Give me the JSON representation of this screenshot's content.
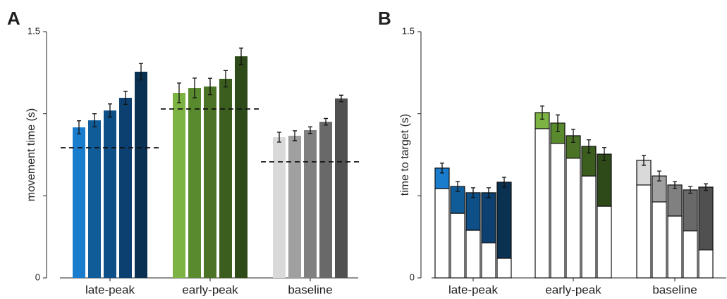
{
  "chart_data": [
    {
      "type": "bar",
      "panel": "A",
      "ylabel": "movement time (s)",
      "ylim": [
        0,
        1.5
      ],
      "yticks": [
        0,
        1.5
      ],
      "yminor_ticks": [
        0.5,
        1
      ],
      "categories": [
        "late-peak",
        "early-peak",
        "baseline"
      ],
      "colors": [
        [
          "#1a7ccc",
          "#0f5c99",
          "#0d4f86",
          "#0b4070",
          "#0a3152"
        ],
        [
          "#7cb342",
          "#5a8a2e",
          "#4a7326",
          "#3b5e1f",
          "#2d4a18"
        ],
        [
          "#d9d9d9",
          "#a0a0a0",
          "#808080",
          "#696969",
          "#505050"
        ]
      ],
      "values": [
        [
          0.917,
          0.96,
          1.02,
          1.097,
          1.256
        ],
        [
          1.127,
          1.157,
          1.166,
          1.213,
          1.35
        ],
        [
          0.857,
          0.866,
          0.9,
          0.951,
          1.093
        ]
      ],
      "errors": [
        [
          0.04,
          0.04,
          0.04,
          0.04,
          0.05
        ],
        [
          0.06,
          0.06,
          0.05,
          0.05,
          0.05
        ],
        [
          0.03,
          0.03,
          0.02,
          0.02,
          0.02
        ]
      ],
      "reference_lines": [
        0.793,
        1.029,
        0.707
      ]
    },
    {
      "type": "stacked_bar",
      "panel": "B",
      "ylabel": "time to target (s)",
      "ylim": [
        0,
        1.5
      ],
      "yticks": [
        0,
        1.5
      ],
      "yminor_ticks": [
        0.5,
        1
      ],
      "categories": [
        "late-peak",
        "early-peak",
        "baseline"
      ],
      "bottom_color": "#ffffff",
      "colors": [
        [
          "#1a7ccc",
          "#0f5c99",
          "#0d4f86",
          "#0b4070",
          "#0a3152"
        ],
        [
          "#7cb342",
          "#5a8a2e",
          "#4a7326",
          "#3b5e1f",
          "#2d4a18"
        ],
        [
          "#d9d9d9",
          "#a0a0a0",
          "#808080",
          "#696969",
          "#505050"
        ]
      ],
      "bottom_values": [
        [
          0.544,
          0.394,
          0.291,
          0.214,
          0.12
        ],
        [
          0.909,
          0.819,
          0.729,
          0.621,
          0.437
        ],
        [
          0.566,
          0.463,
          0.377,
          0.287,
          0.171
        ]
      ],
      "top_values": [
        [
          0.125,
          0.163,
          0.228,
          0.305,
          0.463
        ],
        [
          0.098,
          0.124,
          0.137,
          0.18,
          0.317
        ],
        [
          0.15,
          0.158,
          0.189,
          0.249,
          0.382
        ]
      ],
      "errors": [
        [
          0.03,
          0.03,
          0.03,
          0.03,
          0.03
        ],
        [
          0.04,
          0.05,
          0.04,
          0.04,
          0.04
        ],
        [
          0.03,
          0.03,
          0.02,
          0.02,
          0.02
        ]
      ]
    }
  ]
}
